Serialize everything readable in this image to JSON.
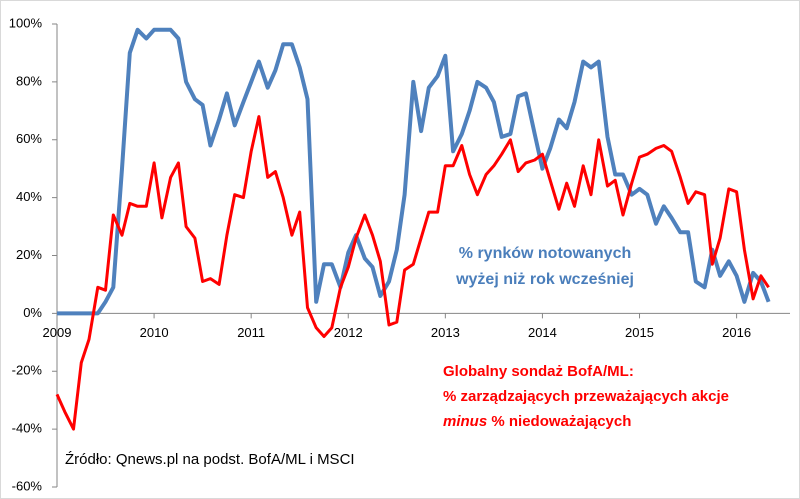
{
  "chart_data": {
    "type": "line",
    "x": [
      2009,
      2009.08,
      2009.17,
      2009.25,
      2009.33,
      2009.42,
      2009.5,
      2009.58,
      2009.67,
      2009.75,
      2009.83,
      2009.92,
      2010,
      2010.08,
      2010.17,
      2010.25,
      2010.33,
      2010.42,
      2010.5,
      2010.58,
      2010.67,
      2010.75,
      2010.83,
      2010.92,
      2011,
      2011.08,
      2011.17,
      2011.25,
      2011.33,
      2011.42,
      2011.5,
      2011.58,
      2011.67,
      2011.75,
      2011.83,
      2011.92,
      2012,
      2012.08,
      2012.17,
      2012.25,
      2012.33,
      2012.42,
      2012.5,
      2012.58,
      2012.67,
      2012.75,
      2012.83,
      2012.92,
      2013,
      2013.08,
      2013.17,
      2013.25,
      2013.33,
      2013.42,
      2013.5,
      2013.58,
      2013.67,
      2013.75,
      2013.83,
      2013.92,
      2014,
      2014.08,
      2014.17,
      2014.25,
      2014.33,
      2014.42,
      2014.5,
      2014.58,
      2014.67,
      2014.75,
      2014.83,
      2014.92,
      2015,
      2015.08,
      2015.17,
      2015.25,
      2015.33,
      2015.42,
      2015.5,
      2015.58,
      2015.67,
      2015.75,
      2015.83,
      2015.92,
      2016,
      2016.08,
      2016.17,
      2016.25,
      2016.33
    ],
    "series": [
      {
        "name": "% rynków notowanych wyżej niż rok wcześniej",
        "color": "#4f81bd",
        "values": [
          0,
          0,
          0,
          0,
          0,
          0,
          4,
          9,
          50,
          90,
          98,
          95,
          98,
          98,
          98,
          95,
          80,
          74,
          72,
          58,
          67,
          76,
          65,
          73,
          80,
          87,
          78,
          84,
          93,
          93,
          85,
          74,
          4,
          17,
          17,
          9,
          21,
          27,
          19,
          16,
          6,
          11,
          22,
          41,
          80,
          63,
          78,
          82,
          89,
          56,
          62,
          70,
          80,
          78,
          73,
          61,
          62,
          75,
          76,
          62,
          50,
          57,
          67,
          64,
          73,
          87,
          85,
          87,
          61,
          48,
          48,
          41,
          43,
          41,
          31,
          37,
          33,
          28,
          28,
          11,
          9,
          22,
          13,
          18,
          13,
          4,
          14,
          11,
          4
        ]
      },
      {
        "name": "Globalny sondaż BofA/ML",
        "color": "#ff0000",
        "values": [
          -28,
          -34,
          -40,
          -17,
          -9,
          9,
          8,
          34,
          27,
          38,
          37,
          37,
          52,
          33,
          47,
          52,
          30,
          26,
          11,
          12,
          10,
          27,
          41,
          40,
          56,
          68,
          47,
          49,
          40,
          27,
          35,
          2,
          -5,
          -8,
          -5,
          9,
          16,
          26,
          34,
          27,
          18,
          -4,
          -3,
          15,
          17,
          26,
          35,
          35,
          51,
          51,
          58,
          48,
          41,
          48,
          51,
          55,
          60,
          49,
          52,
          53,
          55,
          46,
          36,
          45,
          37,
          51,
          41,
          60,
          44,
          46,
          34,
          45,
          54,
          55,
          57,
          58,
          56,
          47,
          38,
          42,
          41,
          17,
          26,
          43,
          42,
          22,
          5,
          13,
          9
        ]
      }
    ],
    "xlim": [
      2009,
      2016.55
    ],
    "xticks": [
      2009,
      2010,
      2011,
      2012,
      2013,
      2014,
      2015,
      2016
    ],
    "ylim": [
      -60,
      100
    ],
    "yticks": [
      {
        "value": -60,
        "label": "-60%"
      },
      {
        "value": -40,
        "label": "-40%"
      },
      {
        "value": -20,
        "label": "-20%"
      },
      {
        "value": 0,
        "label": "0%"
      },
      {
        "value": 20,
        "label": "20%"
      },
      {
        "value": 40,
        "label": "40%"
      },
      {
        "value": 60,
        "label": "60%"
      },
      {
        "value": 80,
        "label": "80%"
      },
      {
        "value": 100,
        "label": "100%"
      }
    ],
    "annotations": {
      "blue": [
        "% rynków notowanych",
        "wyżej niż rok wcześniej"
      ],
      "red": [
        "Globalny sondaż BofA/ML:",
        "% zarządzających  przeważających akcje",
        [
          "minus",
          " % niedoważających"
        ]
      ],
      "source": "Źródło: Qnews.pl na podst. BofA/ML i MSCI"
    }
  }
}
